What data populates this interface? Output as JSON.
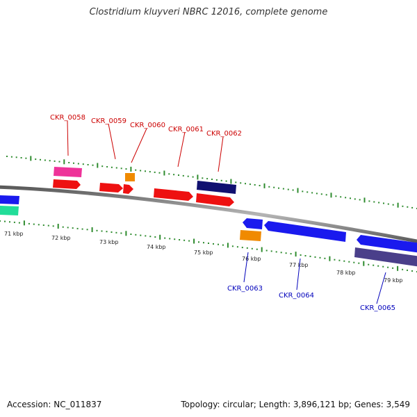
{
  "title": "Clostridium kluyveri NBRC 12016, complete genome",
  "accession": "Accession: NC_011837",
  "topology": "Topology: circular; Length: 3,896,121 bp; Genes: 3,549",
  "scale_labels": [
    "71 kbp",
    "72 kbp",
    "73 kbp",
    "74 kbp",
    "75 kbp",
    "76 kbp",
    "77 kbp",
    "78 kbp",
    "79 kbp"
  ],
  "gene_labels_top": [
    "CKR_0058",
    "CKR_0059",
    "CKR_0060",
    "CKR_0061",
    "CKR_0062"
  ],
  "gene_labels_bottom": [
    "CKR_0063",
    "CKR_0064",
    "CKR_0065"
  ],
  "colors": {
    "backbone": "#8a8a8a",
    "tick": "#2e8b2e",
    "label_top": "#cc0000",
    "label_bottom": "#0000bb",
    "red": "#ee1111",
    "blue": "#1a1aee",
    "navy": "#101070",
    "purple": "#4a3f8a",
    "orange": "#f08a00",
    "pink": "#ee3399",
    "green": "#22dd99"
  }
}
